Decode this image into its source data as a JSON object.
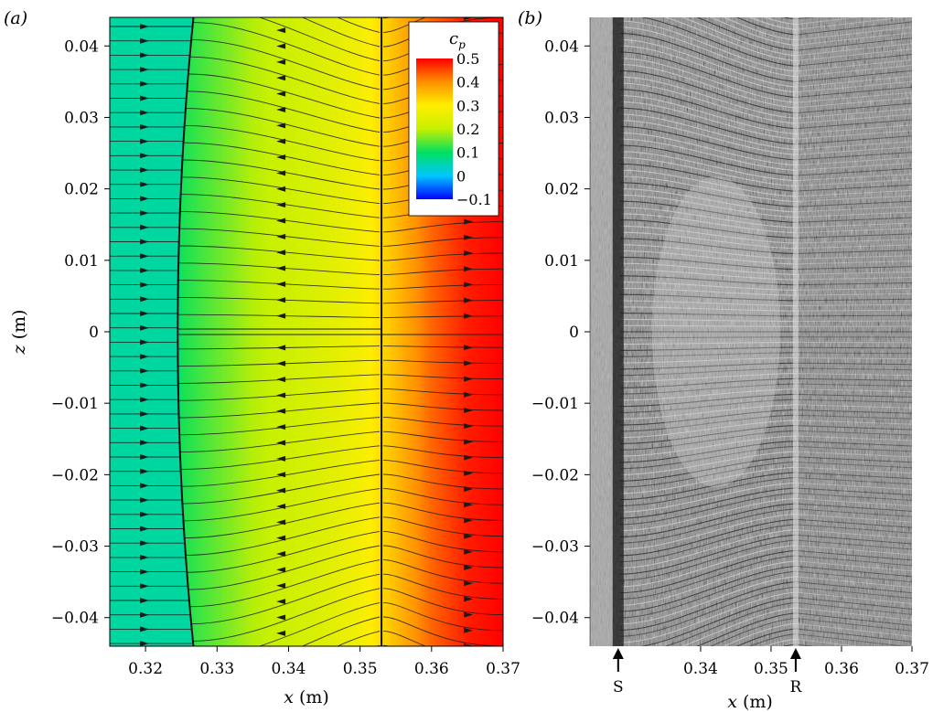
{
  "chart_data": [
    {
      "type": "heatmap",
      "panel_label": "(a)",
      "x_tick_labels": [
        "0.32",
        "0.33",
        "0.34",
        "0.35",
        "0.36",
        "0.37"
      ],
      "x_ticks": [
        0.32,
        0.33,
        0.34,
        0.35,
        0.36,
        0.37
      ],
      "y_tick_labels": [
        "0.04",
        "0.03",
        "0.02",
        "0.01",
        "0",
        "−0.01",
        "−0.02",
        "−0.03",
        "−0.04"
      ],
      "y_ticks": [
        0.04,
        0.03,
        0.02,
        0.01,
        0,
        -0.01,
        -0.02,
        -0.03,
        -0.04
      ],
      "xlim": [
        0.315,
        0.37
      ],
      "ylim": [
        -0.044,
        0.044
      ],
      "xlabel_var": "x",
      "xlabel_unit": "(m)",
      "ylabel_var": "z",
      "ylabel_unit": "(m)",
      "colorbar": {
        "title": "c",
        "title_sub": "p",
        "tick_labels": [
          "0.5",
          "0.4",
          "0.3",
          "0.2",
          "0.1",
          "0",
          "−0.1"
        ],
        "ticks": [
          0.5,
          0.4,
          0.3,
          0.2,
          0.1,
          0,
          -0.1
        ],
        "range": [
          -0.1,
          0.5
        ],
        "colors": [
          "#0000ff",
          "#00c8ff",
          "#00e060",
          "#c8f000",
          "#ffee00",
          "#ff9000",
          "#ff0000"
        ]
      },
      "separation_line_x": 0.3245,
      "reattachment_line_x": 0.353,
      "cp_profile": [
        {
          "x": 0.315,
          "cp": 0.06
        },
        {
          "x": 0.3245,
          "cp": 0.06
        },
        {
          "x": 0.325,
          "cp": 0.11
        },
        {
          "x": 0.33,
          "cp": 0.15
        },
        {
          "x": 0.335,
          "cp": 0.19
        },
        {
          "x": 0.34,
          "cp": 0.21
        },
        {
          "x": 0.345,
          "cp": 0.24
        },
        {
          "x": 0.35,
          "cp": 0.28
        },
        {
          "x": 0.353,
          "cp": 0.32
        },
        {
          "x": 0.356,
          "cp": 0.37
        },
        {
          "x": 0.36,
          "cp": 0.43
        },
        {
          "x": 0.365,
          "cp": 0.48
        },
        {
          "x": 0.37,
          "cp": 0.5
        }
      ]
    },
    {
      "type": "other",
      "panel_label": "(b)",
      "x_tick_labels": [
        "0.34",
        "0.35",
        "0.36",
        "0.37"
      ],
      "x_ticks": [
        0.34,
        0.35,
        0.36,
        0.37
      ],
      "y_tick_labels": [
        "0.04",
        "0.03",
        "0.02",
        "0.01",
        "0",
        "−0.01",
        "−0.02",
        "−0.03",
        "−0.04"
      ],
      "y_ticks": [
        0.04,
        0.03,
        0.02,
        0.01,
        0,
        -0.01,
        -0.02,
        -0.03,
        -0.04
      ],
      "xlim": [
        0.3243,
        0.37
      ],
      "ylim": [
        -0.044,
        0.044
      ],
      "xlabel_var": "x",
      "xlabel_unit": "(m)",
      "annotations": [
        {
          "text": "S",
          "x": 0.3283
        },
        {
          "text": "R",
          "x": 0.3535
        }
      ]
    }
  ]
}
